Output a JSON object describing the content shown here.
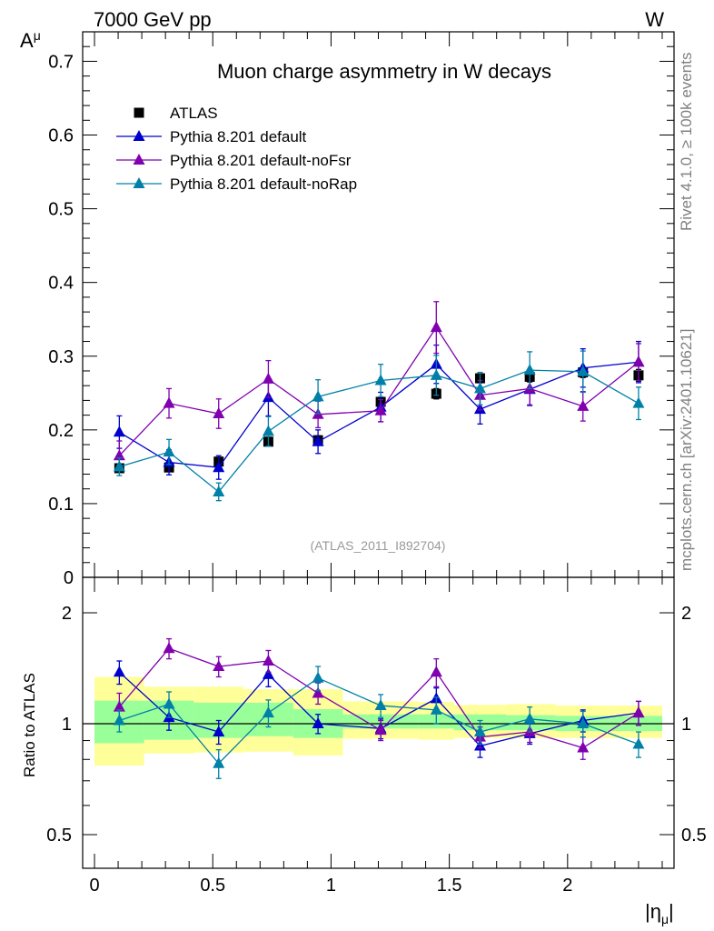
{
  "header": {
    "left": "7000 GeV pp",
    "right": "W"
  },
  "side_labels": {
    "rivet": "Rivet 4.1.0, ≥ 100k events",
    "mcplots": "mcplots.cern.ch [arXiv:2401.10621]"
  },
  "chart_data": {
    "type": "line",
    "title": "Muon charge asymmetry in W decays",
    "analysis": "(ATLAS_2011_I892704)",
    "ylabel": "A",
    "ylabel_sub": "μ",
    "xlabel": "|η",
    "xlabel_sub": "μ",
    "xlabel_end": "|",
    "xlim": [
      -0.05,
      2.45
    ],
    "ylim": [
      0,
      0.74
    ],
    "x_ticks": [
      0,
      0.5,
      1,
      1.5,
      2
    ],
    "x_tick_labels": [
      "0",
      "0.5",
      "1",
      "1.5",
      "2"
    ],
    "y_ticks": [
      0,
      0.1,
      0.2,
      0.3,
      0.4,
      0.5,
      0.6,
      0.7
    ],
    "y_tick_labels": [
      "0",
      "0.1",
      "0.2",
      "0.3",
      "0.4",
      "0.5",
      "0.6",
      "0.7"
    ],
    "x": [
      0.105,
      0.315,
      0.525,
      0.735,
      0.945,
      1.21,
      1.445,
      1.63,
      1.84,
      2.065,
      2.3
    ],
    "bin_edges": [
      0,
      0.21,
      0.42,
      0.63,
      0.84,
      1.05,
      1.37,
      1.52,
      1.74,
      1.95,
      2.18,
      2.4
    ],
    "legend": [
      "ATLAS",
      "Pythia 8.201 default",
      "Pythia 8.201 default-noFsr",
      "Pythia 8.201 default-noRap"
    ],
    "series": [
      {
        "name": "ATLAS",
        "color": "#000000",
        "marker": "square",
        "values": [
          0.148,
          0.149,
          0.157,
          0.184,
          0.186,
          0.238,
          0.249,
          0.27,
          0.272,
          0.278,
          0.274
        ],
        "errors": [
          0.005,
          0.005,
          0.005,
          0.006,
          0.006,
          0.006,
          0.007,
          0.006,
          0.007,
          0.007,
          0.008
        ]
      },
      {
        "name": "Pythia 8.201 default",
        "color": "#0000cc",
        "marker": "triangle",
        "values": [
          0.197,
          0.156,
          0.149,
          0.244,
          0.184,
          0.231,
          0.289,
          0.228,
          0.255,
          0.284,
          0.292
        ],
        "errors": [
          0.022,
          0.017,
          0.016,
          0.025,
          0.016,
          0.02,
          0.026,
          0.02,
          0.022,
          0.026,
          0.028
        ]
      },
      {
        "name": "Pythia 8.201 default-noFsr",
        "color": "#8000b0",
        "marker": "triangle",
        "values": [
          0.165,
          0.236,
          0.222,
          0.269,
          0.221,
          0.226,
          0.339,
          0.247,
          0.256,
          0.232,
          0.292
        ],
        "errors": [
          0.02,
          0.02,
          0.02,
          0.025,
          0.018,
          0.015,
          0.035,
          0.02,
          0.022,
          0.02,
          0.025
        ]
      },
      {
        "name": "Pythia 8.201 default-noRap",
        "color": "#0080a8",
        "marker": "triangle",
        "values": [
          0.15,
          0.17,
          0.116,
          0.198,
          0.245,
          0.267,
          0.274,
          0.256,
          0.281,
          0.279,
          0.236
        ],
        "errors": [
          0.012,
          0.017,
          0.012,
          0.02,
          0.023,
          0.022,
          0.027,
          0.022,
          0.025,
          0.028,
          0.022
        ]
      }
    ],
    "ratio": {
      "ylabel": "Ratio to ATLAS",
      "y_ticks": [
        0.5,
        1,
        2
      ],
      "y_tick_labels": [
        "0.5",
        "1",
        "2"
      ],
      "band_inner": [
        [
          0.885,
          1.155
        ],
        [
          0.905,
          1.155
        ],
        [
          0.915,
          1.14
        ],
        [
          0.925,
          1.14
        ],
        [
          0.915,
          1.095
        ],
        [
          0.97,
          1.06
        ],
        [
          0.97,
          1.06
        ],
        [
          0.96,
          1.06
        ],
        [
          0.96,
          1.055
        ],
        [
          0.955,
          1.05
        ],
        [
          0.955,
          1.05
        ]
      ],
      "band_outer": [
        [
          0.77,
          1.34
        ],
        [
          0.83,
          1.26
        ],
        [
          0.835,
          1.26
        ],
        [
          0.84,
          1.24
        ],
        [
          0.82,
          1.24
        ],
        [
          0.91,
          1.15
        ],
        [
          0.905,
          1.145
        ],
        [
          0.915,
          1.125
        ],
        [
          0.915,
          1.13
        ],
        [
          0.915,
          1.12
        ],
        [
          0.915,
          1.12
        ]
      ],
      "series": [
        {
          "name": "Pythia 8.201 default",
          "color": "#0000cc",
          "values": [
            1.38,
            1.04,
            0.95,
            1.36,
            1.0,
            0.97,
            1.17,
            0.87,
            0.94,
            1.02,
            1.07
          ],
          "errors": [
            0.1,
            0.08,
            0.07,
            0.1,
            0.06,
            0.06,
            0.08,
            0.06,
            0.06,
            0.07,
            0.08
          ]
        },
        {
          "name": "Pythia 8.201 default-noFsr",
          "color": "#8000b0",
          "values": [
            1.11,
            1.6,
            1.43,
            1.48,
            1.21,
            0.96,
            1.38,
            0.92,
            0.95,
            0.86,
            1.07
          ],
          "errors": [
            0.1,
            0.1,
            0.09,
            0.1,
            0.08,
            0.06,
            0.12,
            0.06,
            0.06,
            0.06,
            0.08
          ]
        },
        {
          "name": "Pythia 8.201 default-noRap",
          "color": "#0080a8",
          "values": [
            1.02,
            1.13,
            0.78,
            1.07,
            1.33,
            1.12,
            1.09,
            0.95,
            1.03,
            1.0,
            0.88
          ],
          "errors": [
            0.07,
            0.09,
            0.07,
            0.09,
            0.1,
            0.08,
            0.09,
            0.07,
            0.08,
            0.08,
            0.07
          ]
        }
      ]
    }
  }
}
